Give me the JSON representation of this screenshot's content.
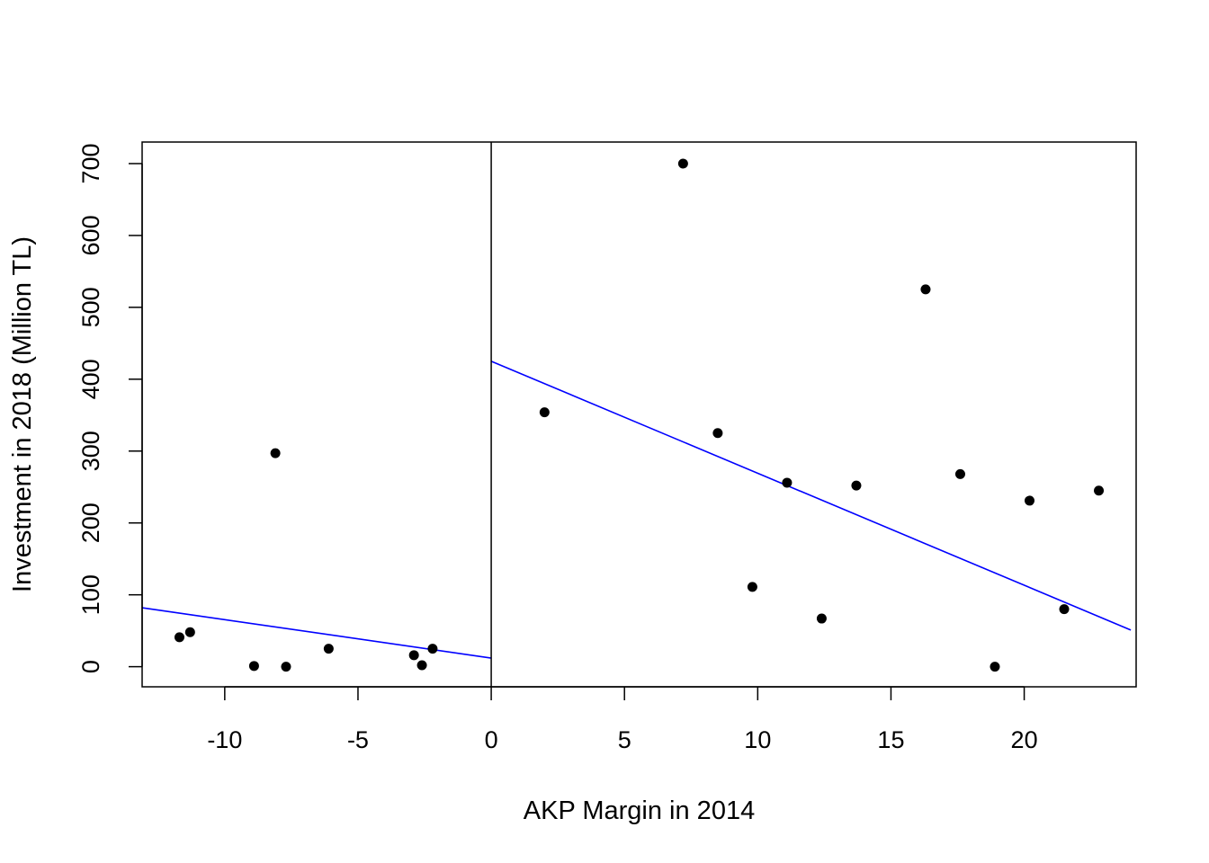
{
  "chart_data": {
    "type": "scatter",
    "title": "",
    "xlabel": "AKP Margin in 2014",
    "ylabel": "Investment in 2018 (Million TL)",
    "xlim": [
      -13.1,
      24.2
    ],
    "ylim": [
      -28,
      730
    ],
    "xticks": [
      -10,
      -5,
      0,
      5,
      10,
      15,
      20
    ],
    "xtick_labels": [
      "-10",
      "-5",
      "0",
      "5",
      "10",
      "15",
      "20"
    ],
    "yticks": [
      0,
      100,
      200,
      300,
      400,
      500,
      600,
      700
    ],
    "ytick_labels": [
      "0",
      "100",
      "200",
      "300",
      "400",
      "500",
      "600",
      "700"
    ],
    "grid": false,
    "cutoff_x": 0,
    "points": [
      {
        "x": -11.7,
        "y": 41
      },
      {
        "x": -11.3,
        "y": 48
      },
      {
        "x": -8.9,
        "y": 1
      },
      {
        "x": -8.1,
        "y": 297
      },
      {
        "x": -7.7,
        "y": 0
      },
      {
        "x": -6.1,
        "y": 25
      },
      {
        "x": -2.9,
        "y": 16
      },
      {
        "x": -2.6,
        "y": 2
      },
      {
        "x": -2.2,
        "y": 25
      },
      {
        "x": 2.0,
        "y": 354
      },
      {
        "x": 7.2,
        "y": 700
      },
      {
        "x": 8.5,
        "y": 325
      },
      {
        "x": 9.8,
        "y": 111
      },
      {
        "x": 11.1,
        "y": 256
      },
      {
        "x": 12.4,
        "y": 67
      },
      {
        "x": 13.7,
        "y": 252
      },
      {
        "x": 16.3,
        "y": 525
      },
      {
        "x": 17.6,
        "y": 268
      },
      {
        "x": 18.9,
        "y": 0
      },
      {
        "x": 20.2,
        "y": 231
      },
      {
        "x": 21.5,
        "y": 80
      },
      {
        "x": 22.8,
        "y": 245
      }
    ],
    "fit_lines": [
      {
        "side": "left",
        "x": [
          -13.1,
          0
        ],
        "y": [
          82,
          12
        ],
        "color": "#0000ff"
      },
      {
        "side": "right",
        "x": [
          0,
          24.0
        ],
        "y": [
          425,
          51
        ],
        "color": "#0000ff"
      }
    ],
    "point_color": "#000000"
  }
}
